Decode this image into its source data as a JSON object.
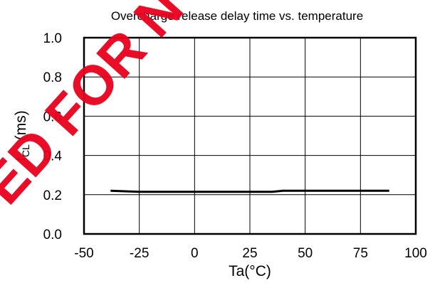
{
  "chart_data": {
    "type": "line",
    "title": "Overcharge release delay time vs. temperature",
    "xlabel": "Ta(°C)",
    "ylabel_main": "t",
    "ylabel_sub": "CL",
    "ylabel_unit": " (ms)",
    "xlim": [
      -50,
      100
    ],
    "ylim": [
      0.0,
      1.0
    ],
    "xticks": [
      -50,
      -25,
      0,
      25,
      50,
      75,
      100
    ],
    "xtick_labels": [
      "-50",
      "-25",
      "0",
      "25",
      "50",
      "75",
      "100"
    ],
    "yticks": [
      0.0,
      0.2,
      0.4,
      0.6,
      0.8,
      1.0
    ],
    "ytick_labels": [
      "0.0",
      "0.2",
      "0.4",
      "0.6",
      "0.8",
      "1.0"
    ],
    "grid": true,
    "series": [
      {
        "x": [
          -38,
          -25,
          35,
          40,
          88
        ],
        "y": [
          0.22,
          0.215,
          0.215,
          0.22,
          0.22
        ],
        "color": "#000000"
      }
    ]
  },
  "watermark": {
    "text": "ED FOR N",
    "color": "#e8001c"
  }
}
